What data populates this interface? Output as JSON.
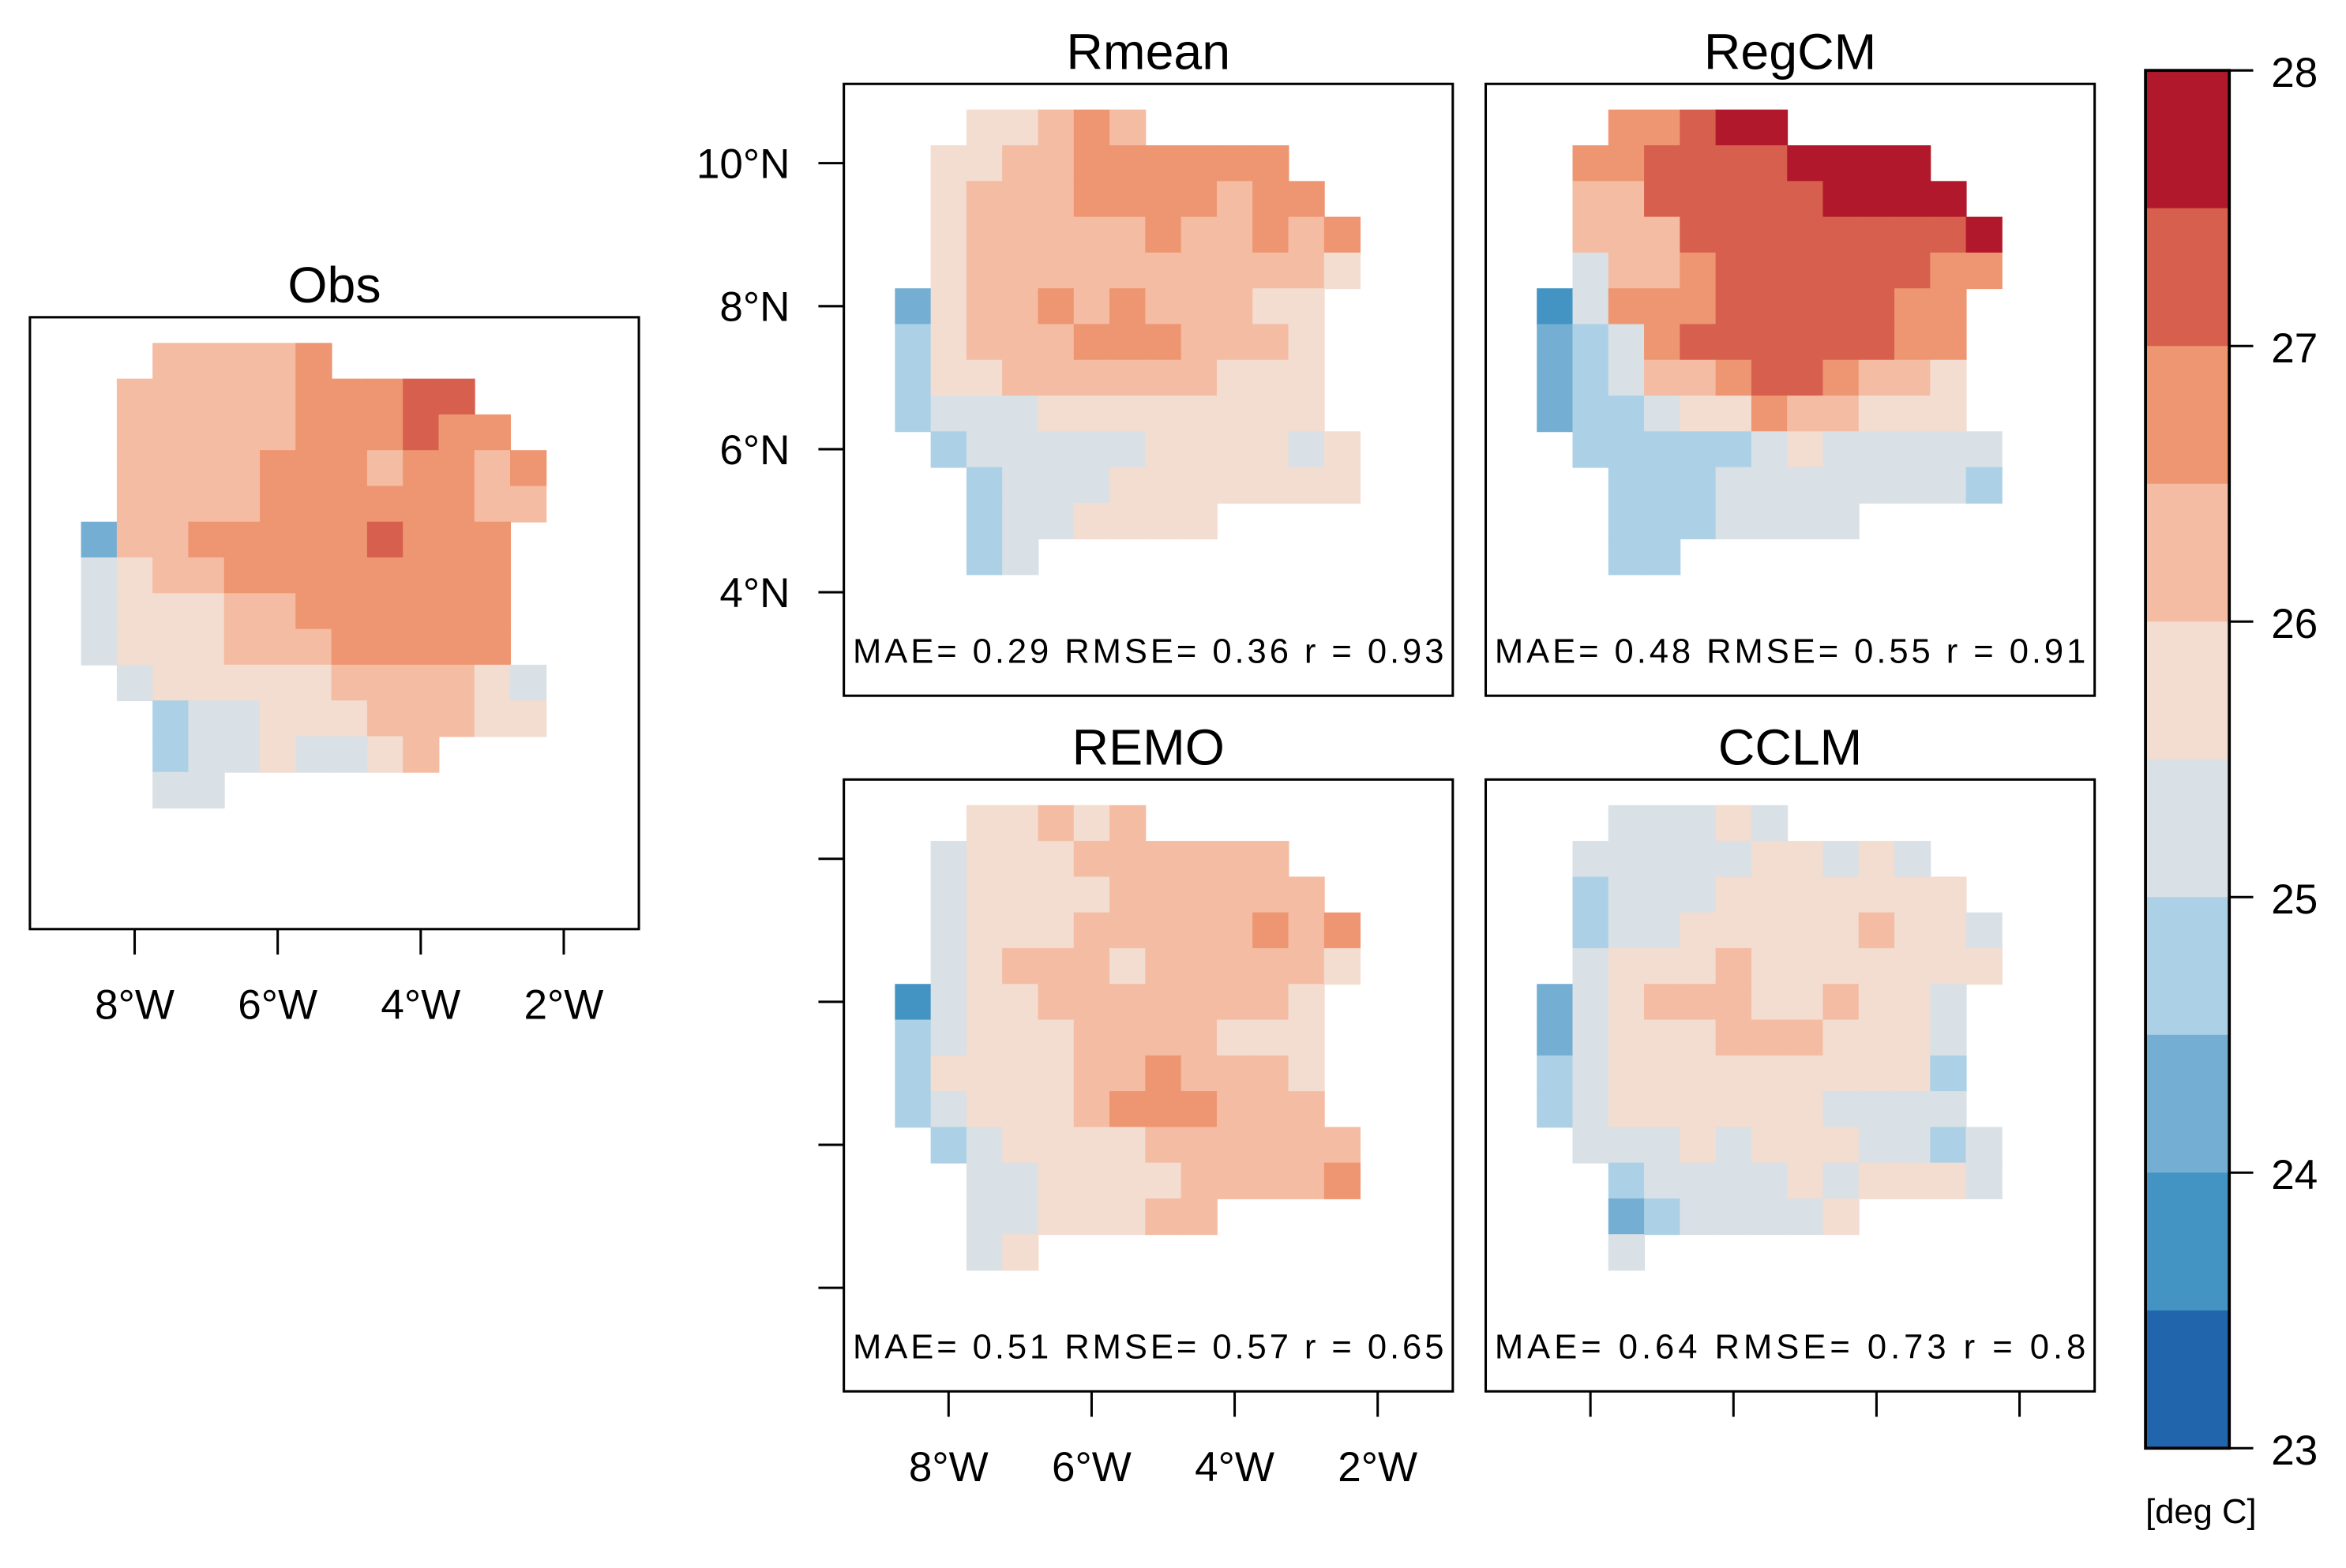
{
  "chart_data": {
    "type": "heatmap",
    "colorbar": {
      "label": "[deg C]",
      "ticks": [
        "28",
        "27",
        "26",
        "25",
        "24",
        "23"
      ],
      "range": [
        23,
        28
      ],
      "step": 0.5,
      "colors": [
        "#2166ac",
        "#4393c3",
        "#74afd3",
        "#acd1e6",
        "#d9e1e6",
        "#f3dcd0",
        "#f4bca3",
        "#ee9571",
        "#d6604d",
        "#b2182b"
      ]
    },
    "grid": {
      "lon_centers": [
        -8.5,
        -8,
        -7.5,
        -7,
        -6.5,
        -6,
        -5.5,
        -5,
        -4.5,
        -4,
        -3.5,
        -3,
        -2.5
      ],
      "lat_centers": [
        10.5,
        10,
        9.5,
        9,
        8.5,
        8,
        7.5,
        7,
        6.5,
        6,
        5.5,
        5,
        4.5
      ],
      "encoding": "class index 0-9 (23 + 0.5*index deg C), '.' = no data"
    },
    "x_ticks": [
      "8°W",
      "6°W",
      "4°W",
      "2°W"
    ],
    "x_tick_values": [
      -8,
      -6,
      -4,
      -2
    ],
    "y_ticks": [
      "10°N",
      "8°N",
      "6°N",
      "4°N"
    ],
    "y_tick_values": [
      10,
      8,
      6,
      4
    ],
    "panels": [
      {
        "id": "obs",
        "title": "Obs",
        "stats": "",
        "rows": [
          "..66667......",
          ".6666677788..",
          ".66666777877.",
          ".666677767767",
          ".666677777766",
          "266777778777.",
          "456677777777.",
          "455566777777.",
          "455566677777.",
          ".455555666654",
          "..34455566655",
          "..34454456...",
          "..44........."
        ]
      },
      {
        "id": "rmean",
        "title": "Rmean",
        "stats": "MAE= 0.29  RMSE= 0.36  r = 0.93",
        "rows": [
          "..55676......",
          ".5566777777..",
          ".56667777677.",
          ".566666766767",
          ".566666666665",
          "256676766655.",
          "356667776665.",
          "355666666555.",
          "344455555555.",
          ".344444555545",
          "..34445555555",
          "..3445555....",
          "..34........."
        ]
      },
      {
        "id": "regcm",
        "title": "RegCM",
        "stats": "MAE= 0.48  RMSE= 0.55  r = 0.91",
        "rows": [
          "..77899......",
          ".7788889999..",
          ".66888889999.",
          ".666888888889",
          ".466788888877",
          "147778888877.",
          "234788888877.",
          "234667887665.",
          "233455766555.",
          ".333334544444",
          "..33344444443",
          "..3334444....",
          "..33........."
        ]
      },
      {
        "id": "remo",
        "title": "REMO",
        "stats": "MAE= 0.51  RMSE= 0.57  r = 0.65",
        "rows": [
          "..55656......",
          ".4555666666..",
          ".45555666666.",
          ".455566666767",
          ".456665666665",
          "145566666665.",
          "345556666555.",
          "355556676665.",
          "345556777666.",
          ".345555666666",
          "..44555566667",
          "..4455566....",
          "..45........."
        ]
      },
      {
        "id": "cclm",
        "title": "CCLM",
        "stats": "MAE= 0.64  RMSE= 0.73  r = 0.8",
        "rows": [
          "..44454......",
          ".4444455454..",
          ".34445555555.",
          ".344555556554",
          ".455565555555",
          "245666556554.",
          "245556665554.",
          "345555555553.",
          "345555554444.",
          ".444545554434",
          "..34444545554",
          "..2344445....",
          "..4.........."
        ]
      }
    ]
  }
}
